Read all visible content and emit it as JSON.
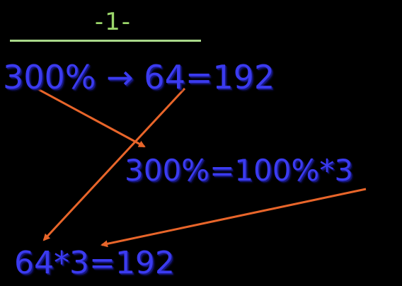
{
  "slide": {
    "number_label": "-1-"
  },
  "equations": {
    "line1": "300% → 64=192",
    "line2": "300%=100%*3",
    "line3": "64*3=192"
  },
  "colors": {
    "background": "#000000",
    "text": "#3b3bf0",
    "title": "#9bd66a",
    "rule": "#a9d98a",
    "arrow": "#e8652a"
  }
}
